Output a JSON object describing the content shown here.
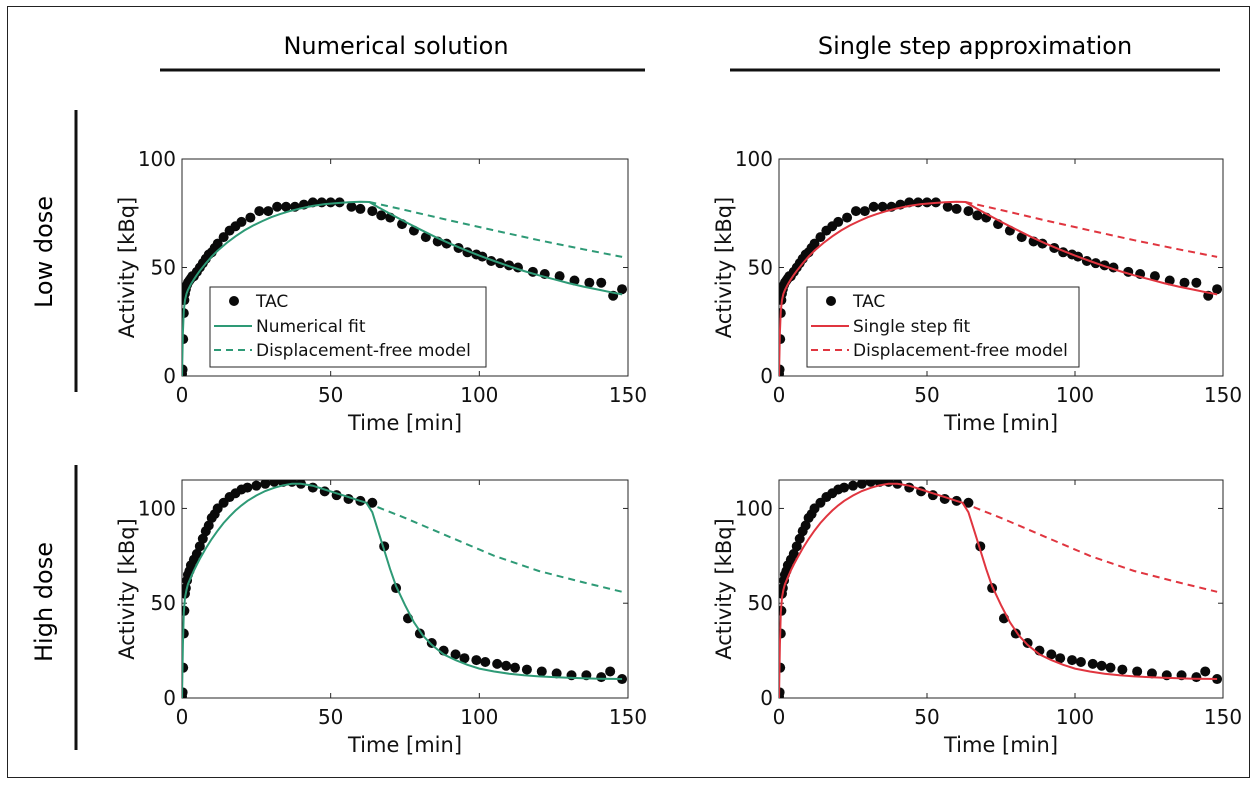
{
  "columns": [
    "Numerical solution",
    "Single step approximation"
  ],
  "rows": [
    "Low dose",
    "High dose"
  ],
  "colors": {
    "numerical": "#2e9a76",
    "single_step": "#e0353f",
    "marker": "#0a0a0a"
  },
  "chart_data": [
    {
      "id": "low-numerical",
      "type": "line",
      "xlabel": "Time [min]",
      "ylabel": "Activity [kBq]",
      "xlim": [
        0,
        150
      ],
      "ylim": [
        0,
        100
      ],
      "xticks": [
        0,
        50,
        100,
        150
      ],
      "yticks": [
        0,
        50,
        100
      ],
      "legend": {
        "position": "bottom-left",
        "entries": [
          "TAC",
          "Numerical fit",
          "Displacement-free model"
        ]
      },
      "color": "#2e9a76",
      "series": [
        {
          "name": "TAC",
          "kind": "scatter",
          "x": [
            0,
            0.2,
            0.4,
            0.6,
            0.8,
            1,
            1.3,
            1.7,
            2,
            2.5,
            3,
            3.5,
            4,
            5,
            6,
            7,
            8,
            9,
            10,
            11,
            12,
            14,
            16,
            18,
            20,
            23,
            26,
            29,
            32,
            35,
            38,
            41,
            44,
            47,
            50,
            53,
            57,
            60,
            64,
            67,
            70,
            74,
            78,
            82,
            86,
            89,
            93,
            96,
            99,
            101,
            104,
            107,
            110,
            113,
            118,
            122,
            127,
            132,
            137,
            141,
            145,
            148
          ],
          "y": [
            1,
            3,
            17,
            29,
            35,
            38,
            40,
            42,
            43,
            44,
            45,
            46,
            46,
            48,
            50,
            52,
            54,
            56,
            57,
            59,
            61,
            64,
            67,
            69,
            71,
            73,
            76,
            76,
            78,
            78,
            78,
            79,
            80,
            80,
            80,
            80,
            78,
            77,
            76,
            74,
            73,
            70,
            67,
            64,
            62,
            61,
            59,
            57,
            56,
            55,
            53,
            52,
            51,
            50,
            48,
            47,
            46,
            44,
            43,
            43,
            37,
            40
          ]
        },
        {
          "name": "Numerical fit",
          "kind": "line",
          "x": [
            0,
            0.3,
            0.6,
            1,
            1.5,
            2,
            3,
            4,
            5,
            6,
            8,
            10,
            12,
            15,
            18,
            21,
            24,
            27,
            30,
            33,
            36,
            40,
            44,
            48,
            52,
            56,
            60,
            63,
            66,
            70,
            75,
            80,
            85,
            90,
            95,
            100,
            105,
            110,
            115,
            120,
            125,
            130,
            135,
            140,
            145,
            148
          ],
          "y": [
            0,
            20,
            30,
            35,
            37.9,
            39.6,
            42.3,
            44.5,
            46.6,
            48.5,
            51.9,
            55,
            57.8,
            61.3,
            64.4,
            67.1,
            69.4,
            71.4,
            73.2,
            74.6,
            75.9,
            77.3,
            78.4,
            79.2,
            79.7,
            80.1,
            80.3,
            80.2,
            77.8,
            74.8,
            71.1,
            67.6,
            64.2,
            61.1,
            58.2,
            55.5,
            53,
            50.6,
            48.4,
            46.4,
            44.6,
            42.8,
            41.2,
            39.8,
            38.4,
            37.6
          ]
        },
        {
          "name": "Displacement-free model",
          "kind": "dashed",
          "x": [
            63,
            75,
            90,
            105,
            120,
            135,
            148
          ],
          "y": [
            80.2,
            76.5,
            71.7,
            67.1,
            62.6,
            58.4,
            54.9
          ]
        }
      ]
    },
    {
      "id": "low-single",
      "type": "line",
      "xlabel": "Time [min]",
      "ylabel": "Activity [kBq]",
      "xlim": [
        0,
        150
      ],
      "ylim": [
        0,
        100
      ],
      "xticks": [
        0,
        50,
        100,
        150
      ],
      "yticks": [
        0,
        50,
        100
      ],
      "legend": {
        "position": "bottom-left",
        "entries": [
          "TAC",
          "Single step fit",
          "Displacement-free model"
        ]
      },
      "color": "#e0353f",
      "series": [
        {
          "name": "TAC",
          "kind": "scatter",
          "x": [
            0,
            0.2,
            0.4,
            0.6,
            0.8,
            1,
            1.3,
            1.7,
            2,
            2.5,
            3,
            3.5,
            4,
            5,
            6,
            7,
            8,
            9,
            10,
            11,
            12,
            14,
            16,
            18,
            20,
            23,
            26,
            29,
            32,
            35,
            38,
            41,
            44,
            47,
            50,
            53,
            57,
            60,
            64,
            67,
            70,
            74,
            78,
            82,
            86,
            89,
            93,
            96,
            99,
            101,
            104,
            107,
            110,
            113,
            118,
            122,
            127,
            132,
            137,
            141,
            145,
            148
          ],
          "y": [
            1,
            3,
            17,
            29,
            35,
            38,
            40,
            42,
            43,
            44,
            45,
            46,
            46,
            48,
            50,
            52,
            54,
            56,
            57,
            59,
            61,
            64,
            67,
            69,
            71,
            73,
            76,
            76,
            78,
            78,
            78,
            79,
            80,
            80,
            80,
            80,
            78,
            77,
            76,
            74,
            73,
            70,
            67,
            64,
            62,
            61,
            59,
            57,
            56,
            55,
            53,
            52,
            51,
            50,
            48,
            47,
            46,
            44,
            43,
            43,
            37,
            40
          ]
        },
        {
          "name": "Single step fit",
          "kind": "line",
          "x": [
            0,
            0.3,
            0.6,
            1,
            1.5,
            2,
            3,
            4,
            5,
            6,
            8,
            10,
            12,
            15,
            18,
            21,
            24,
            27,
            30,
            33,
            36,
            40,
            44,
            48,
            52,
            56,
            60,
            63,
            66,
            70,
            75,
            80,
            85,
            90,
            95,
            100,
            105,
            110,
            115,
            120,
            125,
            130,
            135,
            140,
            145,
            148
          ],
          "y": [
            0,
            20,
            30,
            35,
            37.9,
            39.6,
            42.3,
            44.5,
            46.6,
            48.5,
            51.9,
            55,
            57.8,
            61.3,
            64.4,
            67.1,
            69.4,
            71.4,
            73.2,
            74.6,
            75.9,
            77.3,
            78.4,
            79.2,
            79.7,
            80.1,
            80.3,
            80.2,
            77.8,
            74.8,
            71.1,
            67.6,
            64.2,
            61.1,
            58.2,
            55.5,
            53,
            50.6,
            48.4,
            46.4,
            44.6,
            42.8,
            41.2,
            39.8,
            38.4,
            37.6
          ]
        },
        {
          "name": "Displacement-free model",
          "kind": "dashed",
          "x": [
            63,
            75,
            90,
            105,
            120,
            135,
            148
          ],
          "y": [
            80.2,
            76.5,
            71.7,
            67.1,
            62.6,
            58.4,
            54.9
          ]
        }
      ]
    },
    {
      "id": "high-numerical",
      "type": "line",
      "xlabel": "Time [min]",
      "ylabel": "Activity [kBq]",
      "xlim": [
        0,
        150
      ],
      "ylim": [
        0,
        115
      ],
      "xticks": [
        0,
        50,
        100,
        150
      ],
      "yticks": [
        0,
        50,
        100
      ],
      "legend": null,
      "color": "#2e9a76",
      "series": [
        {
          "name": "TAC",
          "kind": "scatter",
          "x": [
            0,
            0.2,
            0.4,
            0.6,
            0.8,
            1,
            1.3,
            1.7,
            2,
            2.5,
            3,
            4,
            5,
            6,
            7,
            8,
            9,
            10,
            11,
            12,
            14,
            16,
            18,
            20,
            22,
            25,
            28,
            31,
            34,
            37,
            40,
            44,
            48,
            52,
            56,
            60,
            64,
            68,
            72,
            76,
            80,
            84,
            88,
            92,
            95,
            99,
            102,
            106,
            109,
            112,
            116,
            121,
            126,
            131,
            136,
            141,
            144,
            148
          ],
          "y": [
            1,
            3,
            16,
            34,
            46,
            55,
            58,
            62,
            65,
            67,
            70,
            73,
            76,
            80,
            84,
            88,
            91,
            95,
            97,
            100,
            103,
            106,
            108,
            110,
            111,
            112,
            113,
            114,
            114,
            114,
            113,
            111,
            109,
            107,
            105,
            104,
            103,
            80,
            58,
            42,
            34,
            29,
            25,
            23,
            21,
            20,
            19,
            18,
            17,
            16,
            15,
            14,
            13,
            12,
            12,
            11,
            14,
            10
          ]
        },
        {
          "name": "Numerical fit",
          "kind": "line",
          "x": [
            0,
            0.3,
            0.6,
            1,
            1.5,
            2,
            3,
            4,
            5,
            6,
            8,
            10,
            12,
            14,
            16,
            18,
            20,
            22,
            25,
            28,
            31,
            34,
            37,
            40,
            44,
            48,
            52,
            56,
            60,
            62,
            64,
            66,
            68,
            70,
            72,
            75,
            78,
            81,
            84,
            88,
            92,
            96,
            100,
            105,
            110,
            115,
            120,
            125,
            130,
            135,
            140,
            145,
            148
          ],
          "y": [
            0,
            28,
            45,
            53,
            57,
            60,
            63.7,
            67.2,
            70.4,
            73.4,
            78.9,
            83.9,
            88.3,
            92.3,
            95.8,
            98.9,
            101.6,
            104,
            106.8,
            109.2,
            110.9,
            112.2,
            113,
            113,
            112,
            110,
            108,
            106,
            104,
            103,
            98,
            88,
            78,
            68,
            59,
            49,
            40,
            33,
            28,
            23,
            20,
            17.5,
            15.5,
            14,
            12.8,
            12,
            11.4,
            11,
            10.7,
            10.4,
            10.2,
            10.1,
            10
          ]
        },
        {
          "name": "Displacement-free model",
          "kind": "dashed",
          "x": [
            62,
            75,
            90,
            105,
            120,
            135,
            148
          ],
          "y": [
            103,
            95,
            85,
            75,
            67,
            61,
            56
          ]
        }
      ]
    },
    {
      "id": "high-single",
      "type": "line",
      "xlabel": "Time [min]",
      "ylabel": "Activity [kBq]",
      "xlim": [
        0,
        150
      ],
      "ylim": [
        0,
        115
      ],
      "xticks": [
        0,
        50,
        100,
        150
      ],
      "yticks": [
        0,
        50,
        100
      ],
      "legend": null,
      "color": "#e0353f",
      "series": [
        {
          "name": "TAC",
          "kind": "scatter",
          "x": [
            0,
            0.2,
            0.4,
            0.6,
            0.8,
            1,
            1.3,
            1.7,
            2,
            2.5,
            3,
            4,
            5,
            6,
            7,
            8,
            9,
            10,
            11,
            12,
            14,
            16,
            18,
            20,
            22,
            25,
            28,
            31,
            34,
            37,
            40,
            44,
            48,
            52,
            56,
            60,
            64,
            68,
            72,
            76,
            80,
            84,
            88,
            92,
            95,
            99,
            102,
            106,
            109,
            112,
            116,
            121,
            126,
            131,
            136,
            141,
            144,
            148
          ],
          "y": [
            1,
            3,
            16,
            34,
            46,
            55,
            58,
            62,
            65,
            67,
            70,
            73,
            76,
            80,
            84,
            88,
            91,
            95,
            97,
            100,
            103,
            106,
            108,
            110,
            111,
            112,
            113,
            114,
            114,
            114,
            113,
            111,
            109,
            107,
            105,
            104,
            103,
            80,
            58,
            42,
            34,
            29,
            25,
            23,
            21,
            20,
            19,
            18,
            17,
            16,
            15,
            14,
            13,
            12,
            12,
            11,
            14,
            10
          ]
        },
        {
          "name": "Single step fit",
          "kind": "line",
          "x": [
            0,
            0.3,
            0.6,
            1,
            1.5,
            2,
            3,
            4,
            5,
            6,
            8,
            10,
            12,
            14,
            16,
            18,
            20,
            22,
            25,
            28,
            31,
            34,
            37,
            40,
            44,
            48,
            52,
            56,
            60,
            62,
            64,
            66,
            68,
            70,
            72,
            75,
            78,
            81,
            84,
            88,
            92,
            96,
            100,
            105,
            110,
            115,
            120,
            125,
            130,
            135,
            140,
            145,
            148
          ],
          "y": [
            0,
            28,
            45,
            53,
            57,
            60,
            63.7,
            67.2,
            70.4,
            73.4,
            78.9,
            83.9,
            88.3,
            92.3,
            95.8,
            98.9,
            101.6,
            104,
            106.8,
            109.2,
            110.9,
            112.2,
            113,
            113,
            112,
            110,
            108,
            106,
            104,
            103,
            98,
            88,
            78,
            68,
            59,
            49,
            40,
            33,
            28,
            23,
            20,
            17.5,
            15.5,
            14,
            12.8,
            12,
            11.4,
            11,
            10.7,
            10.4,
            10.2,
            10.1,
            10
          ]
        },
        {
          "name": "Displacement-free model",
          "kind": "dashed",
          "x": [
            62,
            75,
            90,
            105,
            120,
            135,
            148
          ],
          "y": [
            103,
            95,
            85,
            75,
            67,
            61,
            56
          ]
        }
      ]
    }
  ]
}
